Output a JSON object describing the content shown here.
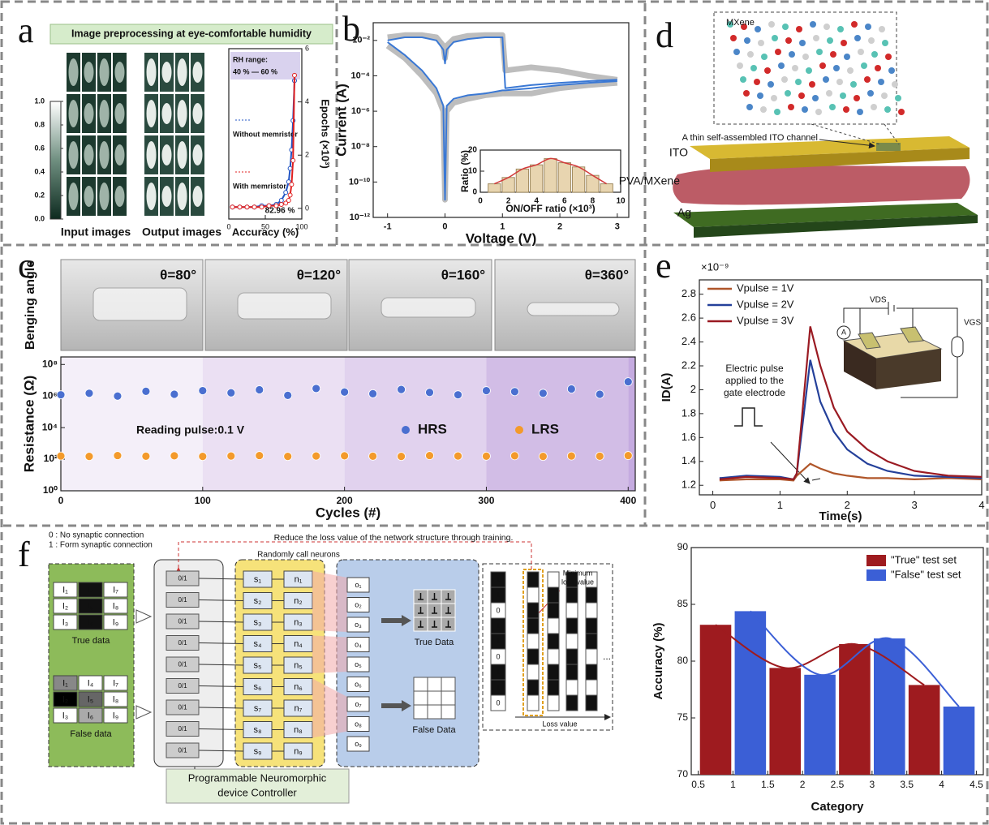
{
  "panel_labels": {
    "a": "a",
    "b": "b",
    "c": "c",
    "d": "d",
    "e": "e",
    "f": "f"
  },
  "panel_a": {
    "title": "Image preprocessing at eye-comfortable humidity",
    "captions": [
      "Input images",
      "Output images"
    ],
    "colorbar_ticks": [
      {
        "value": 0,
        "label": "0.0"
      },
      0.2,
      0.4,
      0.6,
      0.8,
      {
        "value": 1,
        "label": "1.0"
      }
    ]
  },
  "panel_c": {
    "row_label": "Benging angle",
    "photo_labels": [
      "θ=80°",
      "θ=120°",
      "θ=160°",
      "θ=360°"
    ]
  },
  "panel_d": {
    "mxene": "MXene",
    "channel": "A thin self-assembled ITO channel",
    "layers": [
      "ITO",
      "PVA/MXene",
      "Ag"
    ]
  },
  "panel_e": {
    "inset": [
      "VDS",
      "VGS",
      "A"
    ]
  },
  "panel_f": {
    "legend": [
      "0 : No synaptic connection",
      "1 : Form synaptic connection"
    ],
    "feedback": "Reduce the loss value of the network structure through training.",
    "random_call": "Randomly call neurons",
    "true_grid": [
      "I₁",
      "I₄",
      "I₇",
      "I₂",
      "I₅",
      "I₈",
      "I₃",
      "I₆",
      "I₉"
    ],
    "true_caption": "True data",
    "false_grid": [
      "I₁",
      "I₄",
      "I₇",
      "I₂",
      "I₅",
      "I₈",
      "I₃",
      "I₆",
      "I₉"
    ],
    "false_caption": "False data",
    "controller_cells": [
      "0/1",
      "0/1",
      "0/1",
      "0/1",
      "0/1",
      "0/1",
      "0/1",
      "0/1",
      "0/1"
    ],
    "s_nodes": [
      "s₁",
      "s₂",
      "s₃",
      "s₄",
      "s₅",
      "s₆",
      "s₇",
      "s₈",
      "s₉"
    ],
    "n_nodes": [
      "n₁",
      "n₂",
      "n₃",
      "n₄",
      "n₅",
      "n₆",
      "n₇",
      "n₈",
      "n₉"
    ],
    "o_nodes": [
      "o₁",
      "o₂",
      "o₃",
      "o₄",
      "o₅",
      "o₆",
      "o₇",
      "o₈",
      "o₉"
    ],
    "true_output": "True Data",
    "false_output": "False Data",
    "bits": [
      1,
      1,
      0,
      1,
      1,
      0,
      1,
      1,
      0
    ],
    "min_loss": [
      "Minimum",
      "loss value"
    ],
    "loss_axis": "Loss value",
    "ellipsis": "...",
    "controller_label": [
      "Programmable Neuromorphic",
      "device Controller"
    ]
  },
  "chart_data": [
    {
      "type": "line",
      "xlabel": "Accuracy (%)",
      "ylabel": "Epochs (×10³)",
      "xlim": [
        0,
        100
      ],
      "xticks": [
        0,
        50,
        100
      ],
      "ylim": [
        -0.4,
        6
      ],
      "yticks": [
        0,
        2,
        4,
        6
      ],
      "annotations": [
        "RH range:",
        "40 % — 60 %",
        "82.96 %"
      ],
      "x": [
        5,
        15,
        25,
        35,
        45,
        55,
        65,
        72,
        78,
        82,
        84,
        86,
        88,
        90
      ],
      "series": [
        {
          "name": "Without memristor",
          "color": "#2255c4",
          "values": [
            0.05,
            0.05,
            0.05,
            0.05,
            0.1,
            0.1,
            0.15,
            0.3,
            0.6,
            1.0,
            1.5,
            2.2,
            3.3,
            4.8
          ]
        },
        {
          "name": "With memristor",
          "color": "#e02020",
          "values": [
            0.05,
            0.05,
            0.05,
            0.05,
            0.05,
            0.1,
            0.1,
            0.15,
            0.2,
            0.3,
            0.5,
            0.9,
            1.8,
            5.0
          ]
        }
      ]
    },
    {
      "type": "line",
      "log_y": true,
      "xlabel": "Voltage (V)",
      "ylabel": "Current (A)",
      "xlim": [
        -1.25,
        3.2
      ],
      "xticks": [
        -1,
        0,
        1,
        2,
        3
      ],
      "ylim": [
        1e-12,
        0.1
      ],
      "yticks": [
        {
          "value": 1e-12,
          "label": "10⁻¹²"
        },
        {
          "value": 1e-10,
          "label": "10⁻¹⁰"
        },
        {
          "value": 1e-08,
          "label": "10⁻⁸"
        },
        {
          "value": 1e-06,
          "label": "10⁻⁶"
        },
        {
          "value": 0.0001,
          "label": "10⁻⁴"
        },
        {
          "value": 0.01,
          "label": "10⁻²"
        }
      ],
      "x": [
        -1,
        -0.7,
        -0.4,
        -0.15,
        -0.03,
        0,
        0.03,
        0.15,
        0.4,
        0.7,
        1,
        1.05,
        1.5,
        2,
        2.5,
        3
      ],
      "series": [
        {
          "color": "#bdbdbd",
          "values": [
            0.015,
            0.02,
            0.02,
            0.015,
            0.005,
            0.001,
            0.005,
            0.012,
            0.018,
            0.02,
            0.02,
            0.0002,
            0.0003,
            0.0002,
            0.0001,
            6e-05
          ]
        },
        {
          "color": "#bdbdbd",
          "values": [
            0.005,
            0.001,
            0.0001,
            1e-05,
            1e-06,
            1e-11,
            1e-06,
            3e-06,
            5e-06,
            8e-06,
            1e-05,
            1e-05,
            1e-05,
            2e-05,
            3e-05,
            4e-05
          ]
        },
        {
          "color": "#3a78d4",
          "values": [
            0.01,
            0.015,
            0.015,
            0.01,
            0.003,
            0.0005,
            0.003,
            0.008,
            0.012,
            0.015,
            0.015,
            2e-05,
            3e-05,
            4e-05,
            5e-05,
            6e-05
          ]
        },
        {
          "color": "#3a78d4",
          "values": [
            0.008,
            0.0015,
            0.0002,
            2e-05,
            2e-06,
            1e-11,
            2e-06,
            5e-06,
            8e-06,
            1e-05,
            1.5e-05,
            1.5e-05,
            2e-05,
            3e-05,
            4e-05,
            5e-05
          ]
        }
      ]
    },
    {
      "type": "histogram",
      "xlabel": "ON/OFF ratio (×10³)",
      "ylabel": "Ratio (%)",
      "xlim": [
        0,
        10
      ],
      "xticks": [
        0,
        2,
        4,
        6,
        8,
        10
      ],
      "ylim": [
        0,
        20
      ],
      "yticks": [
        0,
        10,
        20
      ],
      "bins": [
        0.5,
        1.5,
        2.5,
        3.5,
        4.5,
        5.5,
        6.5,
        7.5,
        8.5,
        9.5
      ],
      "counts": [
        4,
        7,
        11,
        13,
        16,
        14,
        12,
        8,
        4
      ],
      "color": "#e8d5b0",
      "fit_color": "#d23a3a"
    },
    {
      "type": "scatter",
      "log_y": true,
      "xlabel": "Cycles (#)",
      "ylabel": "Resistance (Ω)",
      "annotation": "Reading pulse:0.1 V",
      "xlim": [
        0,
        405
      ],
      "xticks": [
        0,
        100,
        200,
        300,
        400
      ],
      "ylim": [
        1,
        300000000
      ],
      "yticks": [
        {
          "value": 1,
          "label": "10⁰"
        },
        {
          "value": 100,
          "label": "10²"
        },
        {
          "value": 10000,
          "label": "10⁴"
        },
        {
          "value": 1000000,
          "label": "10⁶"
        },
        {
          "value": 100000000,
          "label": "10⁸"
        }
      ],
      "x": [
        0,
        20,
        40,
        60,
        80,
        100,
        120,
        140,
        160,
        180,
        200,
        220,
        240,
        260,
        280,
        300,
        320,
        340,
        360,
        380,
        400
      ],
      "series": [
        {
          "name": "HRS",
          "color": "#4a6fd0",
          "values": [
            1200000,
            1500000,
            1000000,
            2000000,
            1300000,
            2200000,
            1600000,
            2500000,
            1100000,
            3000000,
            1800000,
            1400000,
            2600000,
            1700000,
            1200000,
            2200000,
            1900000,
            1500000,
            2800000,
            1300000,
            8000000
          ]
        },
        {
          "name": "LRS",
          "color": "#f39a2b",
          "values": [
            160,
            150,
            170,
            155,
            165,
            150,
            160,
            170,
            150,
            160,
            165,
            155,
            150,
            170,
            160,
            155,
            165,
            150,
            160,
            155,
            170
          ]
        }
      ]
    },
    {
      "type": "line",
      "scale_label": "×10⁻⁹",
      "xlabel": "Time(s)",
      "ylabel": "ID(A)",
      "annotation": [
        "Electric pulse",
        "applied to the",
        "gate electrode"
      ],
      "xlim": [
        -0.2,
        4
      ],
      "xticks": [
        0,
        1,
        2,
        3,
        4
      ],
      "ylim": [
        1.12,
        2.92
      ],
      "yticks": [
        1.2,
        1.4,
        1.6,
        1.8,
        2,
        2.2,
        2.4,
        2.6,
        2.8
      ],
      "x": [
        0.1,
        0.5,
        1.0,
        1.2,
        1.25,
        1.45,
        1.6,
        1.8,
        2.0,
        2.3,
        2.6,
        3.0,
        3.5,
        4.0
      ],
      "series": [
        {
          "name": "Vpulse = 1V",
          "color": "#b0562a",
          "values": [
            1.24,
            1.25,
            1.25,
            1.24,
            1.28,
            1.38,
            1.34,
            1.3,
            1.28,
            1.26,
            1.26,
            1.25,
            1.26,
            1.25
          ]
        },
        {
          "name": "Vpulse = 2V",
          "color": "#24409a",
          "values": [
            1.26,
            1.28,
            1.27,
            1.25,
            1.3,
            2.25,
            1.9,
            1.65,
            1.5,
            1.38,
            1.32,
            1.28,
            1.27,
            1.26
          ]
        },
        {
          "name": "Vpulse = 3V",
          "color": "#9a1a22",
          "values": [
            1.25,
            1.27,
            1.26,
            1.25,
            1.3,
            2.53,
            2.2,
            1.85,
            1.65,
            1.5,
            1.4,
            1.32,
            1.28,
            1.27
          ]
        }
      ]
    },
    {
      "type": "bar",
      "xlabel": "Category",
      "ylabel": "Accuracy (%)",
      "xlim": [
        0.4,
        4.6
      ],
      "xticks": [
        0.5,
        1,
        1.5,
        2,
        2.5,
        3,
        3.5,
        4,
        4.5
      ],
      "ylim": [
        70,
        90
      ],
      "yticks": [
        70,
        75,
        80,
        85,
        90
      ],
      "series": [
        {
          "name": "\"True\" test set",
          "color": "#9e1b1f",
          "x": [
            0.75,
            1.75,
            2.75,
            3.75
          ],
          "values": [
            83.2,
            79.4,
            81.5,
            77.9
          ]
        },
        {
          "name": "\"False\" test set",
          "color": "#3b5fd6",
          "x": [
            1.25,
            2.25,
            3.25,
            4.25
          ],
          "values": [
            84.4,
            78.8,
            82,
            76
          ]
        }
      ]
    }
  ]
}
